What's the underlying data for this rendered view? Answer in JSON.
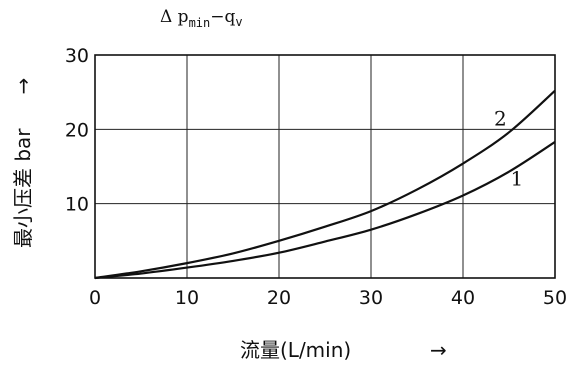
{
  "chart_data": {
    "type": "line",
    "title_parts": {
      "delta": "Δ p",
      "sub_min": "min",
      "dash": "−q",
      "sub_v": "v"
    },
    "xlabel": "流量(L/min)",
    "ylabel": "最小压差 bar",
    "x_arrow": "→",
    "y_arrow": "→",
    "xlim": [
      0,
      50
    ],
    "ylim": [
      0,
      30
    ],
    "xticks": [
      "0",
      "10",
      "20",
      "30",
      "40",
      "50"
    ],
    "yticks": [
      "10",
      "20",
      "30"
    ],
    "grid": true,
    "series": [
      {
        "name": "1",
        "x": [
          0,
          5,
          10,
          15,
          20,
          25,
          30,
          35,
          40,
          45,
          50
        ],
        "y": [
          0,
          0.6,
          1.4,
          2.3,
          3.4,
          4.9,
          6.5,
          8.6,
          11.1,
          14.3,
          18.3
        ]
      },
      {
        "name": "2",
        "x": [
          0,
          5,
          10,
          15,
          20,
          25,
          30,
          35,
          40,
          45,
          50
        ],
        "y": [
          0,
          0.9,
          2.0,
          3.3,
          5.0,
          6.9,
          9.0,
          11.9,
          15.4,
          19.6,
          25.2
        ]
      }
    ]
  }
}
